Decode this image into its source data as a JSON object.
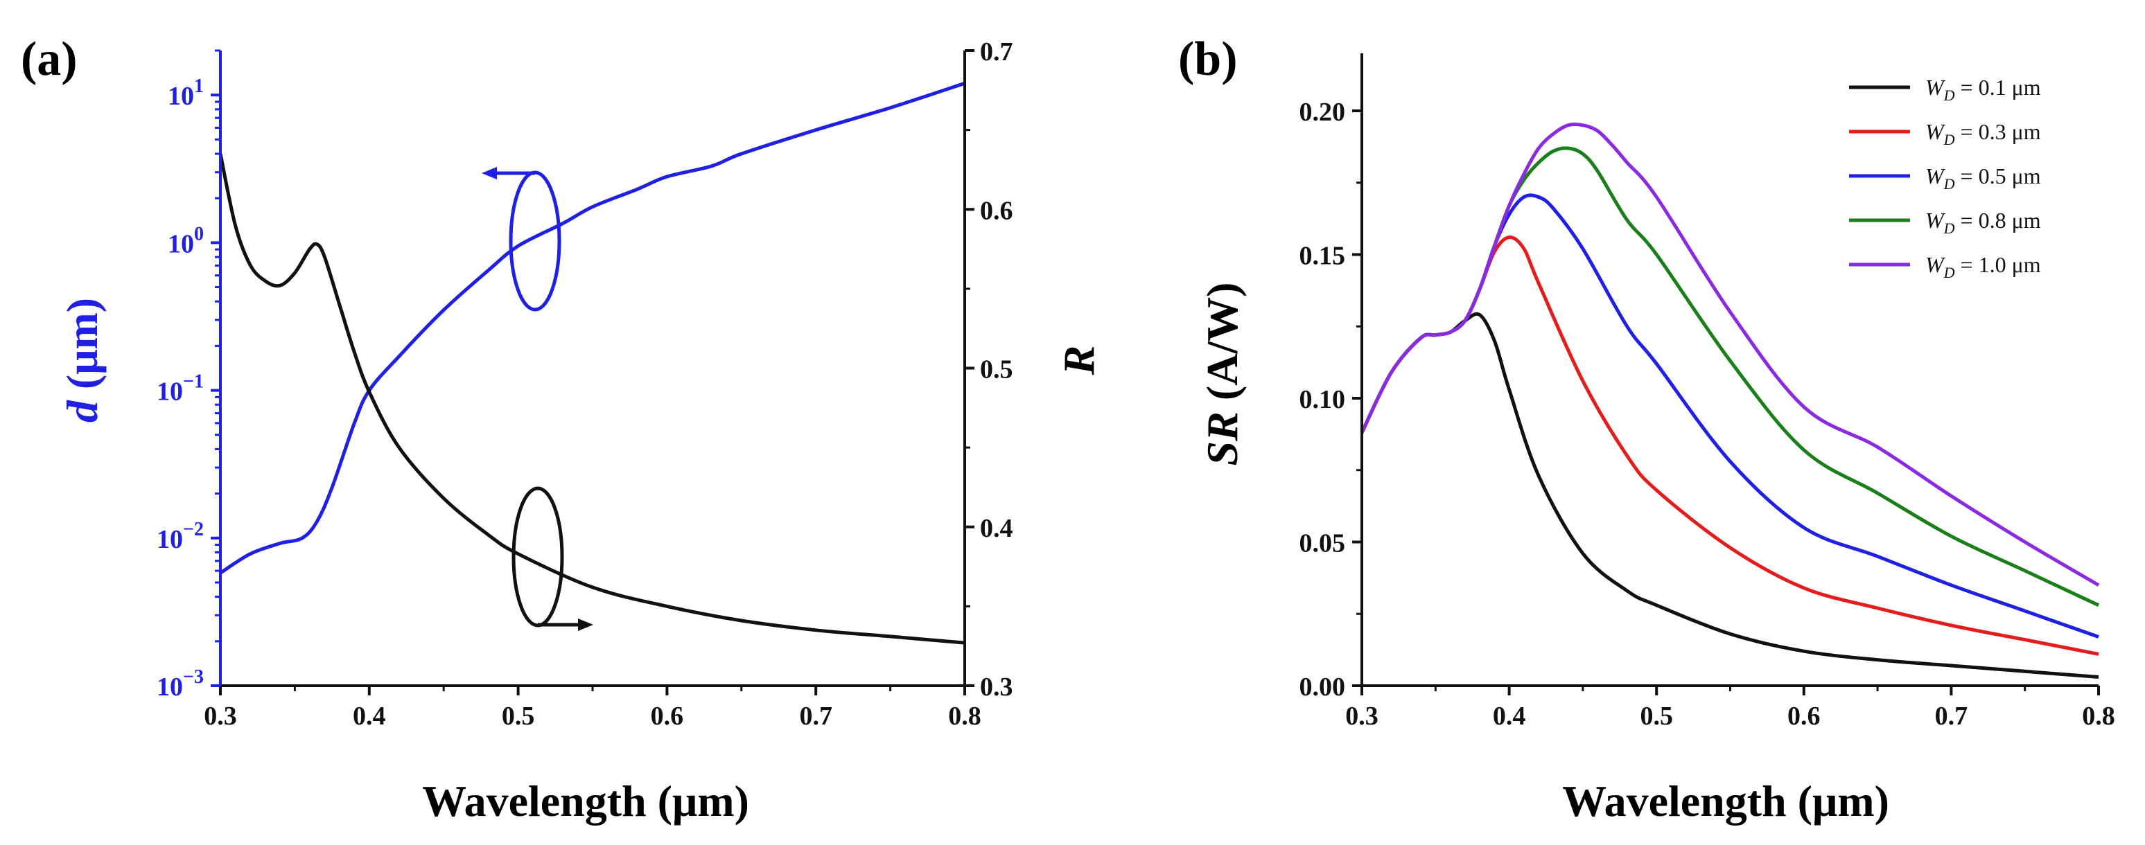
{
  "chart_data": [
    {
      "panel_label": "(a)",
      "type": "line",
      "title": "",
      "xlabel": "Wavelength (μm)",
      "xlim": [
        0.3,
        0.8
      ],
      "xticks": [
        "0.3",
        "0.4",
        "0.5",
        "0.6",
        "0.7",
        "0.8"
      ],
      "left_axis": {
        "label_italic": "d",
        "label_rest": " (μm)",
        "scale": "log",
        "ylim": [
          0.001,
          20
        ],
        "ticks": [
          {
            "base": "10",
            "exp": "1",
            "value": 10
          },
          {
            "base": "10",
            "exp": "0",
            "value": 1
          },
          {
            "base": "10",
            "exp": "−1",
            "value": 0.1
          },
          {
            "base": "10",
            "exp": "−2",
            "value": 0.01
          },
          {
            "base": "10",
            "exp": "−3",
            "value": 0.001
          }
        ],
        "color": "#1f1fe6"
      },
      "right_axis": {
        "label": "R",
        "scale": "linear",
        "ylim": [
          0.3,
          0.7
        ],
        "ticks": [
          "0.3",
          "0.4",
          "0.5",
          "0.6",
          "0.7"
        ],
        "color": "#111111"
      },
      "series": [
        {
          "name": "d",
          "axis": "left",
          "color": "#1f1fe6",
          "x": [
            0.3,
            0.32,
            0.34,
            0.355,
            0.365,
            0.375,
            0.39,
            0.4,
            0.42,
            0.45,
            0.48,
            0.5,
            0.53,
            0.55,
            0.58,
            0.6,
            0.63,
            0.65,
            0.7,
            0.75,
            0.8
          ],
          "y": [
            0.0058,
            0.0078,
            0.0092,
            0.01,
            0.013,
            0.022,
            0.06,
            0.1,
            0.17,
            0.35,
            0.65,
            0.95,
            1.35,
            1.75,
            2.3,
            2.8,
            3.3,
            4.0,
            5.8,
            8.2,
            12
          ]
        },
        {
          "name": "R",
          "axis": "right",
          "color": "#111111",
          "x": [
            0.3,
            0.31,
            0.32,
            0.33,
            0.34,
            0.35,
            0.36,
            0.365,
            0.37,
            0.38,
            0.39,
            0.4,
            0.42,
            0.45,
            0.48,
            0.5,
            0.55,
            0.6,
            0.65,
            0.7,
            0.75,
            0.8
          ],
          "y": [
            0.635,
            0.59,
            0.565,
            0.555,
            0.552,
            0.56,
            0.575,
            0.578,
            0.57,
            0.54,
            0.51,
            0.485,
            0.45,
            0.418,
            0.395,
            0.383,
            0.362,
            0.35,
            0.341,
            0.335,
            0.331,
            0.327
          ]
        }
      ]
    },
    {
      "panel_label": "(b)",
      "type": "line",
      "title": "",
      "xlabel": "Wavelength (μm)",
      "ylabel_italic": "SR",
      "ylabel_rest": " (A/W)",
      "xlim": [
        0.3,
        0.8
      ],
      "ylim": [
        0.0,
        0.22
      ],
      "xticks": [
        "0.3",
        "0.4",
        "0.5",
        "0.6",
        "0.7",
        "0.8"
      ],
      "yticks": [
        "0.00",
        "0.05",
        "0.10",
        "0.15",
        "0.20"
      ],
      "legend_position": "top-right",
      "series": [
        {
          "label_sym": "W",
          "label_sub": "D",
          "label_val": " = 0.1 μm",
          "color": "#111111",
          "x": [
            0.3,
            0.32,
            0.34,
            0.35,
            0.36,
            0.37,
            0.38,
            0.39,
            0.4,
            0.42,
            0.45,
            0.48,
            0.5,
            0.55,
            0.6,
            0.65,
            0.7,
            0.75,
            0.8
          ],
          "y": [
            0.088,
            0.109,
            0.121,
            0.122,
            0.123,
            0.127,
            0.129,
            0.12,
            0.103,
            0.073,
            0.046,
            0.033,
            0.028,
            0.018,
            0.012,
            0.009,
            0.007,
            0.005,
            0.003
          ]
        },
        {
          "label_sym": "W",
          "label_sub": "D",
          "label_val": " = 0.3 μm",
          "color": "#e51c1c",
          "x": [
            0.3,
            0.32,
            0.34,
            0.35,
            0.36,
            0.37,
            0.38,
            0.39,
            0.4,
            0.41,
            0.42,
            0.45,
            0.48,
            0.5,
            0.55,
            0.6,
            0.65,
            0.7,
            0.75,
            0.8
          ],
          "y": [
            0.088,
            0.109,
            0.121,
            0.122,
            0.123,
            0.127,
            0.138,
            0.151,
            0.156,
            0.152,
            0.14,
            0.106,
            0.08,
            0.068,
            0.048,
            0.034,
            0.027,
            0.021,
            0.016,
            0.011
          ]
        },
        {
          "label_sym": "W",
          "label_sub": "D",
          "label_val": " = 0.5 μm",
          "color": "#1f1fe6",
          "x": [
            0.3,
            0.32,
            0.34,
            0.35,
            0.36,
            0.37,
            0.38,
            0.39,
            0.4,
            0.41,
            0.42,
            0.43,
            0.45,
            0.48,
            0.5,
            0.55,
            0.6,
            0.65,
            0.7,
            0.75,
            0.8
          ],
          "y": [
            0.088,
            0.109,
            0.121,
            0.122,
            0.123,
            0.127,
            0.138,
            0.153,
            0.164,
            0.17,
            0.17,
            0.166,
            0.152,
            0.125,
            0.112,
            0.078,
            0.055,
            0.045,
            0.035,
            0.026,
            0.017
          ]
        },
        {
          "label_sym": "W",
          "label_sub": "D",
          "label_val": " = 0.8 μm",
          "color": "#1a7f1a",
          "x": [
            0.3,
            0.32,
            0.34,
            0.35,
            0.36,
            0.37,
            0.38,
            0.39,
            0.4,
            0.41,
            0.42,
            0.43,
            0.44,
            0.45,
            0.46,
            0.48,
            0.5,
            0.55,
            0.6,
            0.65,
            0.7,
            0.75,
            0.8
          ],
          "y": [
            0.088,
            0.109,
            0.121,
            0.122,
            0.123,
            0.127,
            0.138,
            0.153,
            0.167,
            0.176,
            0.182,
            0.186,
            0.187,
            0.185,
            0.179,
            0.162,
            0.15,
            0.113,
            0.082,
            0.067,
            0.052,
            0.04,
            0.028
          ]
        },
        {
          "label_sym": "W",
          "label_sub": "D",
          "label_val": " = 1.0 μm",
          "color": "#8a2be2",
          "x": [
            0.3,
            0.32,
            0.34,
            0.35,
            0.36,
            0.37,
            0.38,
            0.39,
            0.4,
            0.41,
            0.42,
            0.43,
            0.44,
            0.45,
            0.46,
            0.47,
            0.48,
            0.5,
            0.55,
            0.6,
            0.65,
            0.7,
            0.75,
            0.8
          ],
          "y": [
            0.088,
            0.109,
            0.121,
            0.122,
            0.123,
            0.127,
            0.138,
            0.153,
            0.167,
            0.178,
            0.187,
            0.192,
            0.195,
            0.195,
            0.193,
            0.188,
            0.182,
            0.17,
            0.13,
            0.097,
            0.083,
            0.066,
            0.05,
            0.035
          ]
        }
      ]
    }
  ]
}
